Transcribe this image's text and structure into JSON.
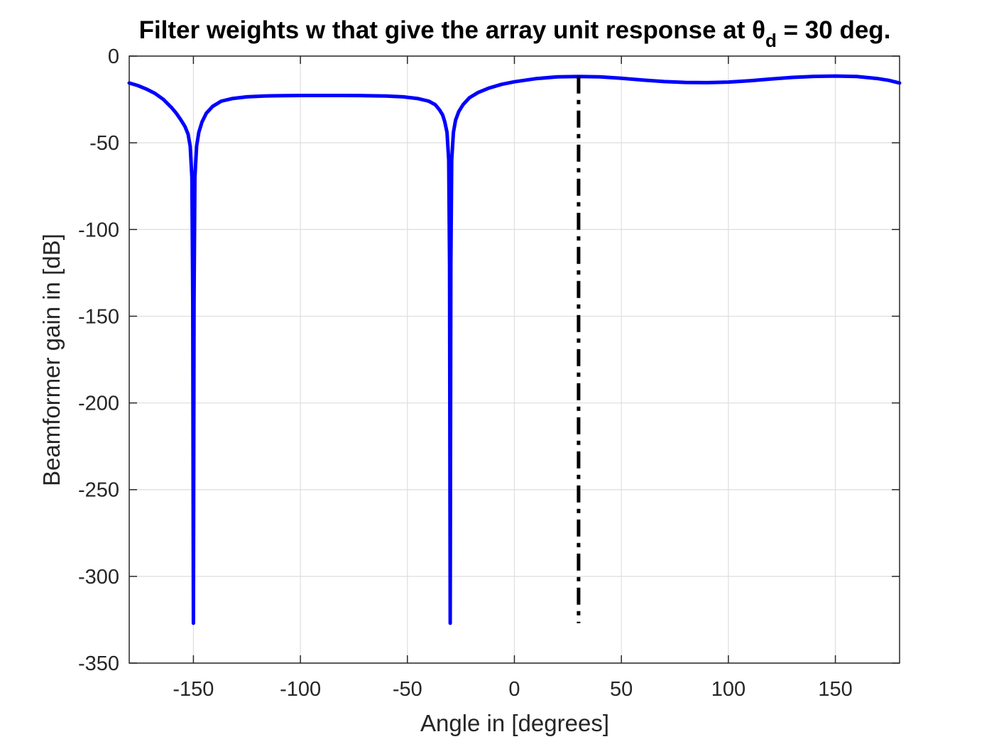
{
  "chart_data": {
    "type": "line",
    "title": {
      "prefix": "Filter weights w that give the array unit response at θ",
      "subscript": "d",
      "suffix": " = 30 deg."
    },
    "xlabel": "Angle in [degrees]",
    "ylabel": "Beamformer gain in [dB]",
    "xlim": [
      -180,
      180
    ],
    "ylim": [
      -350,
      0
    ],
    "xticks": [
      -150,
      -100,
      -50,
      0,
      50,
      100,
      150
    ],
    "yticks": [
      0,
      -50,
      -100,
      -150,
      -200,
      -250,
      -300,
      -350
    ],
    "xtick_labels": [
      "-150",
      "-100",
      "-50",
      "0",
      "50",
      "100",
      "150"
    ],
    "ytick_labels": [
      "0",
      "-50",
      "-100",
      "-150",
      "-200",
      "-250",
      "-300",
      "-350"
    ],
    "grid": true,
    "box": true,
    "series": [
      {
        "style": "solid",
        "color": "#0000ff",
        "x": [
          -180,
          -176,
          -172,
          -168,
          -164,
          -160,
          -158,
          -156,
          -154,
          -152.5,
          -151.5,
          -150.7,
          -150.3,
          -150,
          -149.7,
          -149.3,
          -148.5,
          -147.5,
          -146,
          -144,
          -141,
          -137,
          -132,
          -125,
          -117,
          -108,
          -100,
          -90,
          -80,
          -70,
          -60,
          -52,
          -45,
          -40,
          -37,
          -35,
          -33.5,
          -32.5,
          -31.5,
          -30.7,
          -30.3,
          -30,
          -29.7,
          -29.3,
          -28.5,
          -27.5,
          -26,
          -24,
          -21,
          -17,
          -12,
          -6,
          0,
          10,
          20,
          30,
          40,
          50,
          60,
          70,
          80,
          90,
          100,
          110,
          120,
          130,
          140,
          150,
          160,
          170,
          175,
          180
        ],
        "y": [
          -15.5,
          -17,
          -19,
          -21.5,
          -25,
          -30,
          -33,
          -36.5,
          -40.5,
          -45,
          -52,
          -70,
          -140,
          -327,
          -140,
          -70,
          -52,
          -44,
          -38,
          -33,
          -29,
          -26,
          -24.5,
          -23.5,
          -23,
          -22.8,
          -22.7,
          -22.7,
          -22.7,
          -22.8,
          -23,
          -23.5,
          -24.5,
          -26,
          -28,
          -31,
          -34,
          -38,
          -44,
          -60,
          -120,
          -327,
          -120,
          -60,
          -44,
          -37,
          -32,
          -28,
          -24,
          -21,
          -18.5,
          -16.3,
          -14.8,
          -13,
          -12,
          -11.8,
          -12,
          -12.8,
          -13.8,
          -14.7,
          -15.2,
          -15.3,
          -15,
          -14.2,
          -13.2,
          -12.3,
          -11.7,
          -11.5,
          -11.8,
          -13,
          -14,
          -15.5
        ]
      },
      {
        "style": "dash-dot",
        "color": "#000000",
        "x": [
          30,
          30
        ],
        "y": [
          -11.8,
          -327
        ]
      }
    ]
  }
}
